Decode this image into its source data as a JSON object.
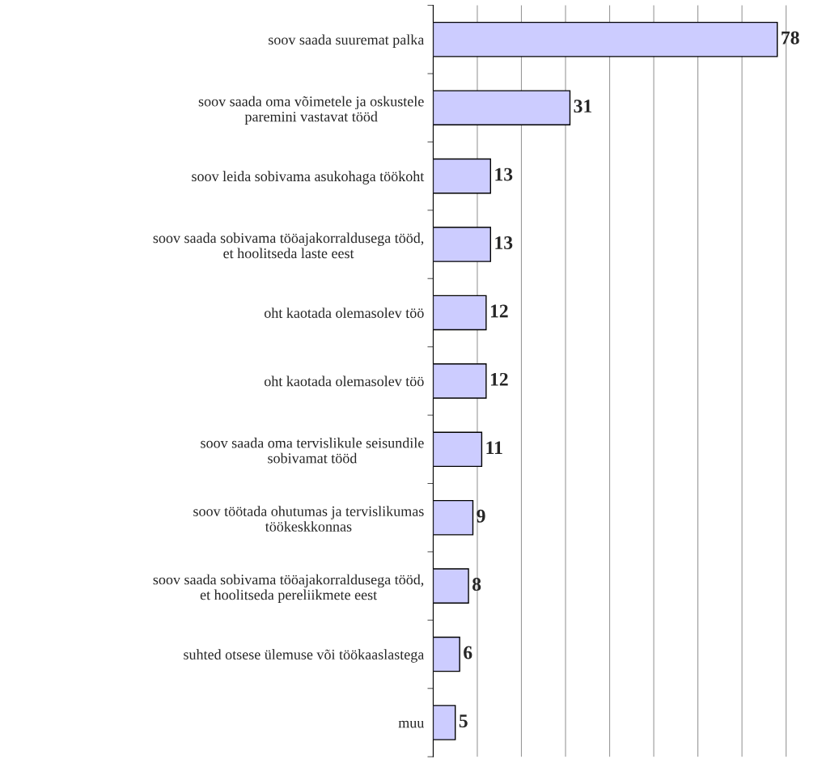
{
  "chart_data": {
    "type": "bar",
    "orientation": "horizontal",
    "categories": [
      "soov saada suuremat palka",
      "soov saada oma võimetele ja oskustele\nparemini vastavat tööd",
      "soov leida sobivama asukohaga töökoht",
      "soov saada sobivama tööajakorraldusega tööd,\net hoolitseda laste eest",
      "oht kaotada olemasolev töö",
      "oht kaotada olemasolev töö",
      "soov saada oma tervislikule seisundile\nsobivamat tööd",
      "soov töötada ohutumas ja tervislikumas\ntöökeskkonnas",
      "soov saada sobivama tööajakorraldusega tööd,\net hoolitseda pereliikmete eest",
      "suhted otsese ülemuse või töökaaslastega",
      "muu"
    ],
    "values": [
      78,
      31,
      13,
      13,
      12,
      12,
      11,
      9,
      8,
      6,
      5
    ],
    "color": "#ccccff",
    "data_labels": true,
    "xticks": [
      {
        "value": 10,
        "label": null
      },
      {
        "value": 20,
        "label": null
      },
      {
        "value": 30,
        "label": null
      },
      {
        "value": 40,
        "label": null
      },
      {
        "value": 50,
        "label": null
      },
      {
        "value": 60,
        "label": null
      },
      {
        "value": 70,
        "label": null
      },
      {
        "value": 80,
        "label": null
      }
    ],
    "grid": "x",
    "tick_labels": "y"
  }
}
